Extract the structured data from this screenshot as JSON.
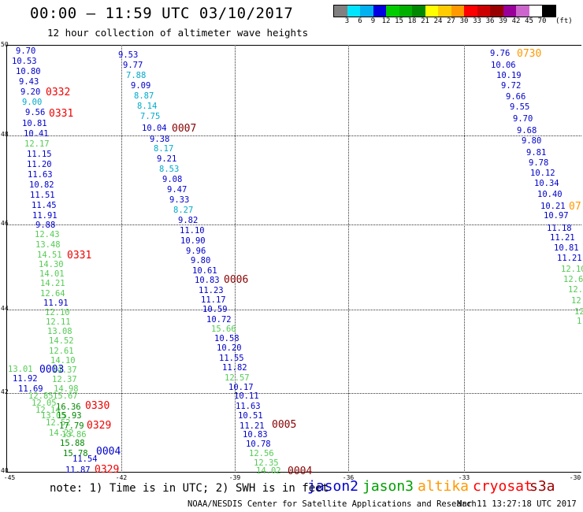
{
  "title": "00:00 – 11:59 UTC 03/10/2017",
  "subtitle": "12 hour collection of altimeter wave heights",
  "colorbar": {
    "colors": [
      "#808080",
      "#00e5ff",
      "#00b0f0",
      "#0000e0",
      "#00cc00",
      "#00b000",
      "#008800",
      "#ffff00",
      "#ffcc00",
      "#ff9900",
      "#ff0000",
      "#cc0000",
      "#990000",
      "#990099",
      "#cc66cc",
      "#ffffff",
      "#000000"
    ],
    "labels": [
      "3",
      "6",
      "9",
      "12",
      "15",
      "18",
      "21",
      "24",
      "27",
      "30",
      "33",
      "36",
      "39",
      "42",
      "45",
      "70"
    ],
    "unit": "(ft)"
  },
  "axes": {
    "lat_labels": [
      "50",
      "48",
      "46",
      "44",
      "42",
      "40"
    ],
    "lon_labels": [
      "-45",
      "-42",
      "-39",
      "-36",
      "-33",
      "-30"
    ]
  },
  "legend_note": "note: 1) Time is in UTC; 2) SWH is in feet",
  "satellites": [
    {
      "name": "jason2",
      "color": "#0000cc"
    },
    {
      "name": "jason3",
      "color": "#00a000"
    },
    {
      "name": "altika",
      "color": "#ff9900"
    },
    {
      "name": "cryosat",
      "color": "#ff0000"
    },
    {
      "name": "s3a",
      "color": "#990000"
    }
  ],
  "credit": "NOAA/NESDIS Center for Satellite Applications and Research",
  "timestamp": "Mar 11 13:27:18 UTC 2017",
  "observations": [
    {
      "t": "9.70",
      "c": "#0000cc"
    },
    {
      "t": "10.53",
      "c": "#0000cc"
    },
    {
      "t": "10.80",
      "c": "#0000cc"
    },
    {
      "t": "9.43",
      "c": "#0000cc"
    },
    {
      "t": "9.20",
      "c": "#0000cc"
    },
    {
      "t": "9.00",
      "c": "#00aacc"
    },
    {
      "t": "9.56",
      "c": "#0000cc"
    },
    {
      "t": "10.81",
      "c": "#0000cc"
    },
    {
      "t": "10.41",
      "c": "#0000cc"
    },
    {
      "t": "12.17",
      "c": "#55cc55"
    },
    {
      "t": "11.15",
      "c": "#0000cc"
    },
    {
      "t": "11.20",
      "c": "#0000cc"
    },
    {
      "t": "11.63",
      "c": "#0000cc"
    },
    {
      "t": "10.82",
      "c": "#0000cc"
    },
    {
      "t": "11.51",
      "c": "#0000cc"
    },
    {
      "t": "11.45",
      "c": "#0000cc"
    },
    {
      "t": "11.91",
      "c": "#0000cc"
    },
    {
      "t": "9.88",
      "c": "#0000cc"
    },
    {
      "t": "12.43",
      "c": "#55cc55"
    },
    {
      "t": "13.48",
      "c": "#55cc55"
    },
    {
      "t": "14.51",
      "c": "#55cc55"
    },
    {
      "t": "14.30",
      "c": "#55cc55"
    },
    {
      "t": "14.01",
      "c": "#55cc55"
    },
    {
      "t": "14.21",
      "c": "#55cc55"
    },
    {
      "t": "12.64",
      "c": "#55cc55"
    },
    {
      "t": "11.91",
      "c": "#0000cc"
    },
    {
      "t": "12.10",
      "c": "#55cc55"
    },
    {
      "t": "12.11",
      "c": "#55cc55"
    },
    {
      "t": "13.08",
      "c": "#55cc55"
    },
    {
      "t": "14.52",
      "c": "#55cc55"
    },
    {
      "t": "12.61",
      "c": "#55cc55"
    },
    {
      "t": "14.10",
      "c": "#55cc55"
    },
    {
      "t": "14.37",
      "c": "#55cc55"
    },
    {
      "t": "13.01",
      "c": "#55cc55"
    },
    {
      "t": "11.92",
      "c": "#0000cc"
    },
    {
      "t": "12.37",
      "c": "#55cc55"
    },
    {
      "t": "11.69",
      "c": "#0000cc"
    },
    {
      "t": "14.98",
      "c": "#55cc55"
    },
    {
      "t": "12.85",
      "c": "#55cc55"
    },
    {
      "t": "15.67",
      "c": "#55cc55"
    },
    {
      "t": "12.05",
      "c": "#55cc55"
    },
    {
      "t": "12.14",
      "c": "#55cc55"
    },
    {
      "t": "16.36",
      "c": "#008800"
    },
    {
      "t": "13.05",
      "c": "#55cc55"
    },
    {
      "t": "15.93",
      "c": "#008800"
    },
    {
      "t": "12.52",
      "c": "#55cc55"
    },
    {
      "t": "17.79",
      "c": "#008800"
    },
    {
      "t": "14.22",
      "c": "#55cc55"
    },
    {
      "t": "13.86",
      "c": "#55cc55"
    },
    {
      "t": "15.88",
      "c": "#008800"
    },
    {
      "t": "15.78",
      "c": "#008800"
    },
    {
      "t": "11.54",
      "c": "#0000cc"
    },
    {
      "t": "11.87",
      "c": "#0000cc"
    },
    {
      "t": "9.53",
      "c": "#0000cc"
    },
    {
      "t": "9.77",
      "c": "#0000cc"
    },
    {
      "t": "7.88",
      "c": "#00aacc"
    },
    {
      "t": "9.09",
      "c": "#0000cc"
    },
    {
      "t": "8.87",
      "c": "#00aacc"
    },
    {
      "t": "8.14",
      "c": "#00aacc"
    },
    {
      "t": "7.75",
      "c": "#00aacc"
    },
    {
      "t": "10.04",
      "c": "#0000cc"
    },
    {
      "t": "9.38",
      "c": "#0000cc"
    },
    {
      "t": "8.17",
      "c": "#00aacc"
    },
    {
      "t": "9.21",
      "c": "#0000cc"
    },
    {
      "t": "8.53",
      "c": "#00aacc"
    },
    {
      "t": "9.08",
      "c": "#0000cc"
    },
    {
      "t": "9.47",
      "c": "#0000cc"
    },
    {
      "t": "9.33",
      "c": "#0000cc"
    },
    {
      "t": "8.27",
      "c": "#00aacc"
    },
    {
      "t": "9.82",
      "c": "#0000cc"
    },
    {
      "t": "11.10",
      "c": "#0000cc"
    },
    {
      "t": "10.90",
      "c": "#0000cc"
    },
    {
      "t": "9.96",
      "c": "#0000cc"
    },
    {
      "t": "9.80",
      "c": "#0000cc"
    },
    {
      "t": "10.61",
      "c": "#0000cc"
    },
    {
      "t": "10.83",
      "c": "#0000cc"
    },
    {
      "t": "11.23",
      "c": "#0000cc"
    },
    {
      "t": "11.17",
      "c": "#0000cc"
    },
    {
      "t": "10.59",
      "c": "#0000cc"
    },
    {
      "t": "10.72",
      "c": "#0000cc"
    },
    {
      "t": "15.66",
      "c": "#55cc55"
    },
    {
      "t": "10.58",
      "c": "#0000cc"
    },
    {
      "t": "10.20",
      "c": "#0000cc"
    },
    {
      "t": "11.55",
      "c": "#0000cc"
    },
    {
      "t": "11.82",
      "c": "#0000cc"
    },
    {
      "t": "12.57",
      "c": "#55cc55"
    },
    {
      "t": "10.17",
      "c": "#0000cc"
    },
    {
      "t": "10.11",
      "c": "#0000cc"
    },
    {
      "t": "11.63",
      "c": "#0000cc"
    },
    {
      "t": "10.51",
      "c": "#0000cc"
    },
    {
      "t": "11.21",
      "c": "#0000cc"
    },
    {
      "t": "10.83",
      "c": "#0000cc"
    },
    {
      "t": "10.78",
      "c": "#0000cc"
    },
    {
      "t": "12.56",
      "c": "#55cc55"
    },
    {
      "t": "12.35",
      "c": "#55cc55"
    },
    {
      "t": "14.02",
      "c": "#55cc55"
    },
    {
      "t": "9.76",
      "c": "#0000cc"
    },
    {
      "t": "10.06",
      "c": "#0000cc"
    },
    {
      "t": "10.19",
      "c": "#0000cc"
    },
    {
      "t": "9.72",
      "c": "#0000cc"
    },
    {
      "t": "9.66",
      "c": "#0000cc"
    },
    {
      "t": "9.55",
      "c": "#0000cc"
    },
    {
      "t": "9.70",
      "c": "#0000cc"
    },
    {
      "t": "9.68",
      "c": "#0000cc"
    },
    {
      "t": "9.80",
      "c": "#0000cc"
    },
    {
      "t": "9.81",
      "c": "#0000cc"
    },
    {
      "t": "9.78",
      "c": "#0000cc"
    },
    {
      "t": "10.12",
      "c": "#0000cc"
    },
    {
      "t": "10.34",
      "c": "#0000cc"
    },
    {
      "t": "10.40",
      "c": "#0000cc"
    },
    {
      "t": "10.21",
      "c": "#0000cc"
    },
    {
      "t": "10.97",
      "c": "#0000cc"
    },
    {
      "t": "11.18",
      "c": "#0000cc"
    },
    {
      "t": "11.21",
      "c": "#0000cc"
    },
    {
      "t": "10.81",
      "c": "#0000cc"
    },
    {
      "t": "11.21",
      "c": "#0000cc"
    },
    {
      "t": "12.10",
      "c": "#55cc55"
    },
    {
      "t": "12.6",
      "c": "#55cc55"
    },
    {
      "t": "12.9",
      "c": "#55cc55"
    },
    {
      "t": "12.",
      "c": "#55cc55"
    },
    {
      "t": "12",
      "c": "#55cc55"
    },
    {
      "t": "1",
      "c": "#55cc55"
    }
  ],
  "pass_labels": [
    {
      "t": "0332",
      "c": "#ee0000"
    },
    {
      "t": "0331",
      "c": "#ee0000"
    },
    {
      "t": "0331",
      "c": "#ee0000"
    },
    {
      "t": "0003",
      "c": "#0000cc"
    },
    {
      "t": "0330",
      "c": "#ee0000"
    },
    {
      "t": "0329",
      "c": "#ee0000"
    },
    {
      "t": "0004",
      "c": "#0000cc"
    },
    {
      "t": "0329",
      "c": "#ee0000"
    },
    {
      "t": "0007",
      "c": "#880000"
    },
    {
      "t": "0006",
      "c": "#880000"
    },
    {
      "t": "0005",
      "c": "#880000"
    },
    {
      "t": "0004",
      "c": "#880000"
    },
    {
      "t": "0730",
      "c": "#ff9900"
    },
    {
      "t": "07",
      "c": "#ff9900"
    }
  ]
}
